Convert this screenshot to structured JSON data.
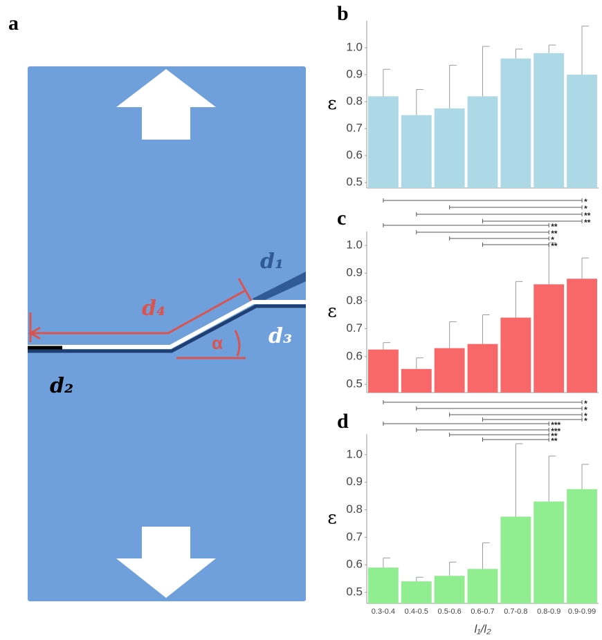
{
  "panels": [
    "a",
    "b",
    "c",
    "d"
  ],
  "diagram": {
    "d1": "d₁",
    "d2": "d₂",
    "d3": "d₃",
    "d4": "d₄",
    "alpha": "α"
  },
  "chart_data": [
    {
      "type": "bar",
      "y_label": "ε",
      "color": "#add8e6",
      "values": [
        0.82,
        0.75,
        0.775,
        0.82,
        0.96,
        0.98,
        0.9
      ],
      "errors": [
        0.1,
        0.095,
        0.16,
        0.185,
        0.035,
        0.03,
        0.18
      ],
      "ylim": [
        0.48,
        1.1
      ],
      "yticks": [
        0.5,
        0.6,
        0.7,
        0.8,
        0.9,
        {
          "value": 1,
          "label": "1.0"
        }
      ]
    },
    {
      "type": "bar",
      "y_label": "ε",
      "color": "#f86868",
      "values": [
        0.625,
        0.555,
        0.63,
        0.645,
        0.74,
        0.86,
        0.88
      ],
      "errors": [
        0.025,
        0.04,
        0.095,
        0.105,
        0.13,
        0.15,
        0.075
      ],
      "ylim": [
        0.47,
        1.05
      ],
      "yticks": [
        0.5,
        0.6,
        0.7,
        0.8,
        0.9,
        {
          "value": 1,
          "label": "1.0"
        }
      ],
      "comparisons": [
        {
          "from": 0,
          "to": 6,
          "label": "*"
        },
        {
          "from": 2,
          "to": 6,
          "label": "*"
        },
        {
          "from": 1,
          "to": 6,
          "label": "**"
        },
        {
          "from": 3,
          "to": 6,
          "label": "**"
        },
        {
          "from": 0,
          "to": 5,
          "label": "**"
        },
        {
          "from": 1,
          "to": 5,
          "label": "**"
        },
        {
          "from": 2,
          "to": 5,
          "label": "*"
        },
        {
          "from": 3,
          "to": 5,
          "label": "**"
        }
      ]
    },
    {
      "type": "bar",
      "y_label": "ε",
      "x_label": "l₁/l₂",
      "color": "#90ee90",
      "categories": [
        "0.3-0.4",
        "0.4-0.5",
        "0.5-0.6",
        "0.6-0.7",
        "0.7-0.8",
        "0.8-0.9",
        "0.9-0.99"
      ],
      "values": [
        0.59,
        0.54,
        0.56,
        0.585,
        0.775,
        0.83,
        0.875
      ],
      "errors": [
        0.035,
        0.015,
        0.05,
        0.095,
        0.265,
        0.165,
        0.09
      ],
      "ylim": [
        0.46,
        1.075
      ],
      "yticks": [
        0.5,
        0.6,
        0.7,
        0.8,
        0.9,
        {
          "value": 1,
          "label": "1.0"
        }
      ],
      "comparisons": [
        {
          "from": 0,
          "to": 6,
          "label": "*"
        },
        {
          "from": 1,
          "to": 6,
          "label": "*"
        },
        {
          "from": 2,
          "to": 6,
          "label": "*"
        },
        {
          "from": 3,
          "to": 6,
          "label": "*"
        },
        {
          "from": 0,
          "to": 5,
          "label": "***"
        },
        {
          "from": 1,
          "to": 5,
          "label": "***"
        },
        {
          "from": 2,
          "to": 5,
          "label": "**"
        },
        {
          "from": 3,
          "to": 5,
          "label": "**"
        }
      ]
    }
  ]
}
